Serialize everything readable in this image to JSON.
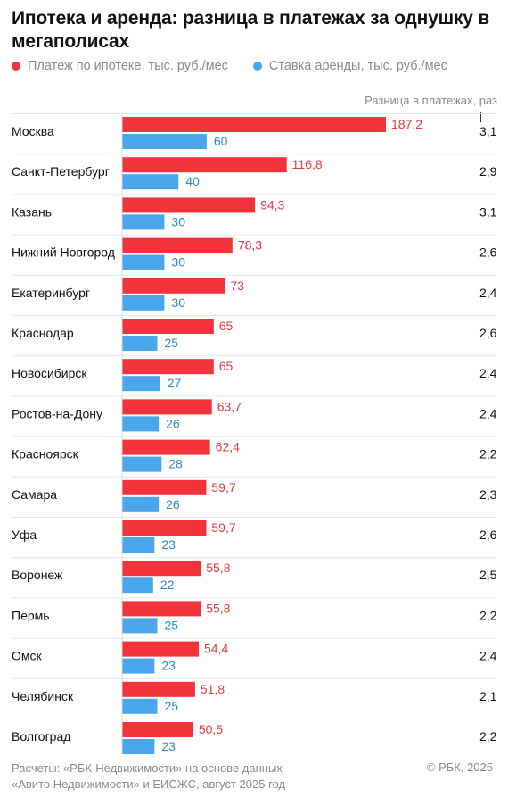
{
  "title": "Ипотека и аренда: разница в платежах за однушку в мегаполисах",
  "legend": [
    {
      "label": "Платеж по ипотеке, тыс. руб./мес",
      "color": "#f2333c"
    },
    {
      "label": "Ставка аренды, тыс. руб./мес",
      "color": "#4aa6ea"
    }
  ],
  "diff_header": "Разница в платежах, раз",
  "footer": {
    "source": "Расчеты: «РБК-Недвижимости» на основе данных «Авито Недвижимости» и ЕИСЖС, август 2025 год",
    "copyright": "© РБК, 2025"
  },
  "colors": {
    "mortgage_label": "#e23a3f",
    "rent_label": "#2f88c8"
  },
  "chart_data": {
    "type": "bar",
    "orientation": "horizontal",
    "categories": [
      "Москва",
      "Санкт-Петербург",
      "Казань",
      "Нижний Новгород",
      "Екатеринбург",
      "Краснодар",
      "Новосибирск",
      "Ростов-на-Дону",
      "Красноярск",
      "Самара",
      "Уфа",
      "Воронеж",
      "Пермь",
      "Омск",
      "Челябинск",
      "Волгоград"
    ],
    "series": [
      {
        "name": "Платеж по ипотеке, тыс. руб./мес",
        "color": "#f2333c",
        "values": [
          187.2,
          116.8,
          94.3,
          78.3,
          73,
          65,
          65,
          63.7,
          62.4,
          59.7,
          59.7,
          55.8,
          55.8,
          54.4,
          51.8,
          50.5
        ],
        "labels": [
          "187,2",
          "116,8",
          "94,3",
          "78,3",
          "73",
          "65",
          "65",
          "63,7",
          "62,4",
          "59,7",
          "59,7",
          "55,8",
          "55,8",
          "54,4",
          "51,8",
          "50,5"
        ]
      },
      {
        "name": "Ставка аренды, тыс. руб./мес",
        "color": "#4aa6ea",
        "values": [
          60,
          40,
          30,
          30,
          30,
          25,
          27,
          26,
          28,
          26,
          23,
          22,
          25,
          23,
          25,
          23
        ],
        "labels": [
          "60",
          "40",
          "30",
          "30",
          "30",
          "25",
          "27",
          "26",
          "28",
          "26",
          "23",
          "22",
          "25",
          "23",
          "25",
          "23"
        ]
      }
    ],
    "ratio_labels": [
      "3,1",
      "2,9",
      "3,1",
      "2,6",
      "2,4",
      "2,6",
      "2,4",
      "2,4",
      "2,2",
      "2,3",
      "2,6",
      "2,5",
      "2,2",
      "2,4",
      "2,1",
      "2,2"
    ],
    "xlim": [
      0,
      187.2
    ],
    "grid": false,
    "legend_position": "top-left"
  }
}
